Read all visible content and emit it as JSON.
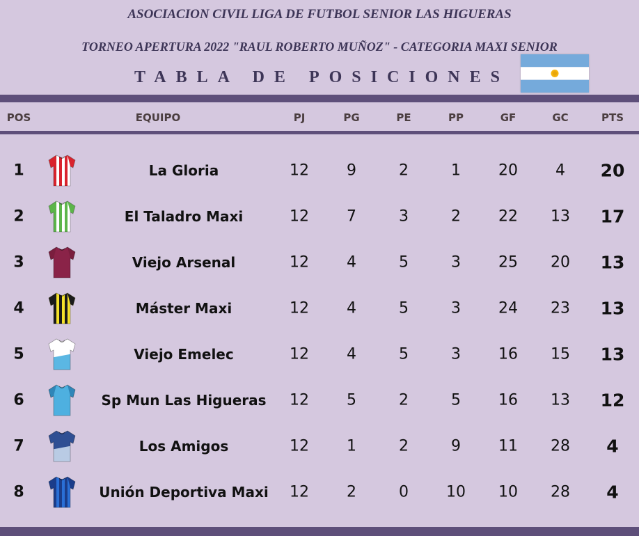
{
  "header": {
    "association": "ASOCIACION CIVIL LIGA DE FUTBOL SENIOR LAS HIGUERAS",
    "tournament_prefix": "TORNEO APERTURA 2022 ",
    "tournament_name": "\"RAUL ROBERTO MUÑOZ\"",
    "tournament_suffix": " - CATEGORIA MAXI SENIOR",
    "table_title": "TABLA DE POSICIONES",
    "flag": "argentina-flag"
  },
  "columns": {
    "pos": "POS",
    "team": "EQUIPO",
    "pj": "PJ",
    "pg": "PG",
    "pe": "PE",
    "pp": "PP",
    "gf": "GF",
    "gc": "GC",
    "pts": "PTS"
  },
  "colors": {
    "background": "#d5c8df",
    "bar": "#5e4f7a",
    "title": "#3d3557"
  },
  "rows": [
    {
      "pos": "1",
      "team": "La Gloria",
      "pj": "12",
      "pg": "9",
      "pe": "2",
      "pp": "1",
      "gf": "20",
      "gc": "4",
      "pts": "20",
      "jersey": {
        "icon": "red-white-striped-jersey",
        "base": "#ffffff",
        "stripe": "#d9232d",
        "sleeve": "#d9232d",
        "pattern": "vstripes"
      }
    },
    {
      "pos": "2",
      "team": "El Taladro Maxi",
      "pj": "12",
      "pg": "7",
      "pe": "3",
      "pp": "2",
      "gf": "22",
      "gc": "13",
      "pts": "17",
      "jersey": {
        "icon": "green-white-striped-jersey",
        "base": "#ffffff",
        "stripe": "#5cb54a",
        "sleeve": "#5cb54a",
        "pattern": "vstripes"
      }
    },
    {
      "pos": "3",
      "team": "Viejo Arsenal",
      "pj": "12",
      "pg": "4",
      "pe": "5",
      "pp": "3",
      "gf": "25",
      "gc": "20",
      "pts": "13",
      "jersey": {
        "icon": "maroon-jersey",
        "base": "#8a2348",
        "stripe": "#8a2348",
        "sleeve": "#7a1e3e",
        "pattern": "solid"
      }
    },
    {
      "pos": "4",
      "team": "Máster Maxi",
      "pj": "12",
      "pg": "4",
      "pe": "5",
      "pp": "3",
      "gf": "24",
      "gc": "23",
      "pts": "13",
      "jersey": {
        "icon": "yellow-black-striped-jersey",
        "base": "#f4e12a",
        "stripe": "#1a1a1a",
        "sleeve": "#1a1a1a",
        "pattern": "vstripes"
      }
    },
    {
      "pos": "5",
      "team": "Viejo Emelec",
      "pj": "12",
      "pg": "4",
      "pe": "5",
      "pp": "3",
      "gf": "16",
      "gc": "15",
      "pts": "13",
      "jersey": {
        "icon": "white-skyblue-jersey",
        "base": "#ffffff",
        "stripe": "#5bb7e3",
        "sleeve": "#ffffff",
        "pattern": "bottom"
      }
    },
    {
      "pos": "6",
      "team": "Sp Mun Las Higueras",
      "pj": "12",
      "pg": "5",
      "pe": "2",
      "pp": "5",
      "gf": "16",
      "gc": "13",
      "pts": "12",
      "jersey": {
        "icon": "skyblue-jersey",
        "base": "#4eb0e0",
        "stripe": "#4eb0e0",
        "sleeve": "#2f86b8",
        "pattern": "solid"
      }
    },
    {
      "pos": "7",
      "team": "Los Amigos",
      "pj": "12",
      "pg": "1",
      "pe": "2",
      "pp": "9",
      "gf": "11",
      "gc": "28",
      "pts": "4",
      "jersey": {
        "icon": "navy-lightblue-jersey",
        "base": "#2f4f93",
        "stripe": "#b9cbe4",
        "sleeve": "#2f4f93",
        "pattern": "bottom"
      }
    },
    {
      "pos": "8",
      "team": "Unión Deportiva Maxi",
      "pj": "12",
      "pg": "2",
      "pe": "0",
      "pp": "10",
      "gf": "10",
      "gc": "28",
      "pts": "4",
      "jersey": {
        "icon": "blue-navy-striped-jersey",
        "base": "#2a6fd6",
        "stripe": "#1b3d8a",
        "sleeve": "#1b3d8a",
        "pattern": "vstripes"
      }
    }
  ]
}
